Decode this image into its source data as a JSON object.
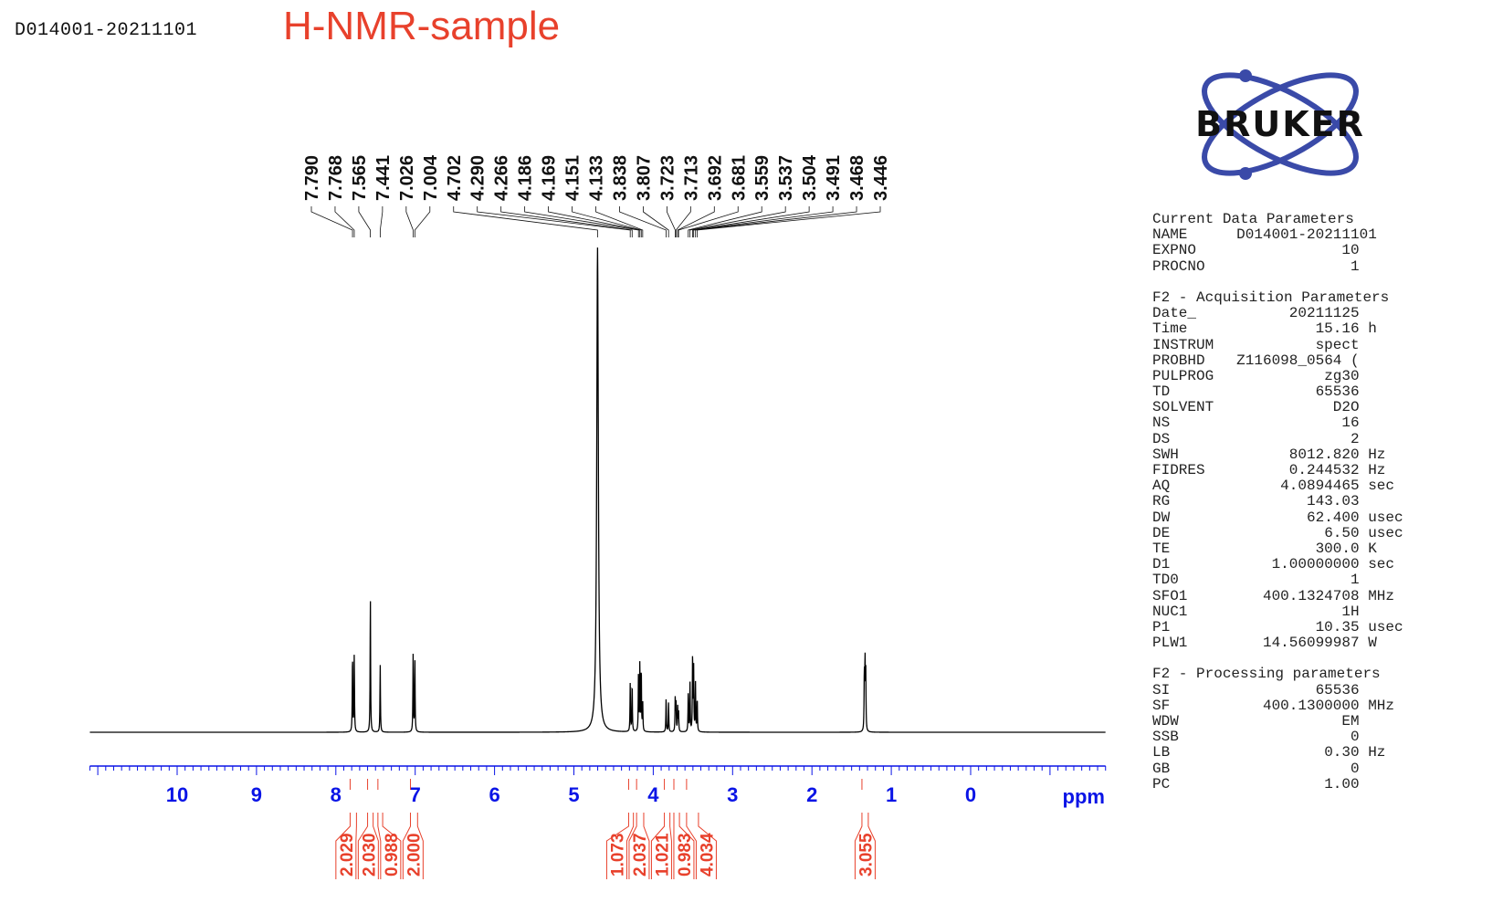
{
  "header": {
    "sample_id": "D014001-20211101",
    "title": "H-NMR-sample"
  },
  "logo": {
    "text": "BRUKER",
    "color": "#3a4aa8"
  },
  "colors": {
    "spectrum": "#000000",
    "axis": "#0a14e6",
    "integral": "#e8412c",
    "title": "#e8412c"
  },
  "chart_data": {
    "type": "line",
    "xlabel": "ppm",
    "x_reversed": true,
    "xlim": [
      11.1,
      -1.7
    ],
    "x_ticks": [
      "10",
      "9",
      "8",
      "7",
      "6",
      "5",
      "4",
      "3",
      "2",
      "1",
      "0"
    ],
    "peak_labels": [
      "7.790",
      "7.768",
      "7.565",
      "7.441",
      "7.026",
      "7.004",
      "4.702",
      "4.290",
      "4.266",
      "4.186",
      "4.169",
      "4.151",
      "4.133",
      "3.838",
      "3.807",
      "3.723",
      "3.713",
      "3.692",
      "3.681",
      "3.559",
      "3.537",
      "3.504",
      "3.491",
      "3.468",
      "3.446"
    ],
    "peaks": [
      {
        "ppm": 7.79,
        "intensity": 0.16
      },
      {
        "ppm": 7.768,
        "intensity": 0.16
      },
      {
        "ppm": 7.565,
        "intensity": 0.28
      },
      {
        "ppm": 7.441,
        "intensity": 0.14
      },
      {
        "ppm": 7.026,
        "intensity": 0.16
      },
      {
        "ppm": 7.004,
        "intensity": 0.15
      },
      {
        "ppm": 4.702,
        "intensity": 1.0
      },
      {
        "ppm": 4.29,
        "intensity": 0.1
      },
      {
        "ppm": 4.266,
        "intensity": 0.1
      },
      {
        "ppm": 4.186,
        "intensity": 0.12
      },
      {
        "ppm": 4.169,
        "intensity": 0.14
      },
      {
        "ppm": 4.151,
        "intensity": 0.13
      },
      {
        "ppm": 4.133,
        "intensity": 0.06
      },
      {
        "ppm": 3.838,
        "intensity": 0.07
      },
      {
        "ppm": 3.807,
        "intensity": 0.06
      },
      {
        "ppm": 3.723,
        "intensity": 0.07
      },
      {
        "ppm": 3.713,
        "intensity": 0.06
      },
      {
        "ppm": 3.692,
        "intensity": 0.05
      },
      {
        "ppm": 3.681,
        "intensity": 0.04
      },
      {
        "ppm": 3.559,
        "intensity": 0.08
      },
      {
        "ppm": 3.537,
        "intensity": 0.1
      },
      {
        "ppm": 3.504,
        "intensity": 0.16
      },
      {
        "ppm": 3.491,
        "intensity": 0.13
      },
      {
        "ppm": 3.468,
        "intensity": 0.1
      },
      {
        "ppm": 3.446,
        "intensity": 0.07
      },
      {
        "ppm": 1.34,
        "intensity": 0.12
      },
      {
        "ppm": 1.322,
        "intensity": 0.12
      },
      {
        "ppm": 1.331,
        "intensity": 0.14
      }
    ],
    "integrals": [
      {
        "value": "2.029",
        "from": 7.82,
        "to": 7.74
      },
      {
        "value": "2.030",
        "from": 7.6,
        "to": 7.53
      },
      {
        "value": "0.988",
        "from": 7.47,
        "to": 7.41
      },
      {
        "value": "2.000",
        "from": 7.06,
        "to": 6.97
      },
      {
        "value": "1.073",
        "from": 4.31,
        "to": 4.25
      },
      {
        "value": "2.037",
        "from": 4.21,
        "to": 4.12
      },
      {
        "value": "1.021",
        "from": 3.86,
        "to": 3.79
      },
      {
        "value": "0.983",
        "from": 3.74,
        "to": 3.67
      },
      {
        "value": "4.034",
        "from": 3.58,
        "to": 3.43
      },
      {
        "value": "3.055",
        "from": 1.37,
        "to": 1.29
      }
    ]
  },
  "parameters": {
    "current": {
      "heading": "Current Data Parameters",
      "rows": [
        {
          "name": "NAME",
          "value": "D014001-20211101",
          "unit": ""
        },
        {
          "name": "EXPNO",
          "value": "10",
          "unit": ""
        },
        {
          "name": "PROCNO",
          "value": "1",
          "unit": ""
        }
      ]
    },
    "acquisition": {
      "heading": "F2 - Acquisition Parameters",
      "rows": [
        {
          "name": "Date_",
          "value": "20211125",
          "unit": ""
        },
        {
          "name": "Time",
          "value": "15.16",
          "unit": "h"
        },
        {
          "name": "INSTRUM",
          "value": "spect",
          "unit": ""
        },
        {
          "name": "PROBHD",
          "value": "Z116098_0564 (",
          "unit": ""
        },
        {
          "name": "PULPROG",
          "value": "zg30",
          "unit": ""
        },
        {
          "name": "TD",
          "value": "65536",
          "unit": ""
        },
        {
          "name": "SOLVENT",
          "value": "D2O",
          "unit": ""
        },
        {
          "name": "NS",
          "value": "16",
          "unit": ""
        },
        {
          "name": "DS",
          "value": "2",
          "unit": ""
        },
        {
          "name": "SWH",
          "value": "8012.820",
          "unit": "Hz"
        },
        {
          "name": "FIDRES",
          "value": "0.244532",
          "unit": "Hz"
        },
        {
          "name": "AQ",
          "value": "4.0894465",
          "unit": "sec"
        },
        {
          "name": "RG",
          "value": "143.03",
          "unit": ""
        },
        {
          "name": "DW",
          "value": "62.400",
          "unit": "usec"
        },
        {
          "name": "DE",
          "value": "6.50",
          "unit": "usec"
        },
        {
          "name": "TE",
          "value": "300.0",
          "unit": "K"
        },
        {
          "name": "D1",
          "value": "1.00000000",
          "unit": "sec"
        },
        {
          "name": "TD0",
          "value": "1",
          "unit": ""
        },
        {
          "name": "SFO1",
          "value": "400.1324708",
          "unit": "MHz"
        },
        {
          "name": "NUC1",
          "value": "1H",
          "unit": ""
        },
        {
          "name": "P1",
          "value": "10.35",
          "unit": "usec"
        },
        {
          "name": "PLW1",
          "value": "14.56099987",
          "unit": "W"
        }
      ]
    },
    "processing": {
      "heading": "F2 - Processing parameters",
      "rows": [
        {
          "name": "SI",
          "value": "65536",
          "unit": ""
        },
        {
          "name": "SF",
          "value": "400.1300000",
          "unit": "MHz"
        },
        {
          "name": "WDW",
          "value": "EM",
          "unit": ""
        },
        {
          "name": "SSB",
          "value": "0",
          "unit": ""
        },
        {
          "name": "LB",
          "value": "0.30",
          "unit": "Hz"
        },
        {
          "name": "GB",
          "value": "0",
          "unit": ""
        },
        {
          "name": "PC",
          "value": "1.00",
          "unit": ""
        }
      ]
    }
  }
}
